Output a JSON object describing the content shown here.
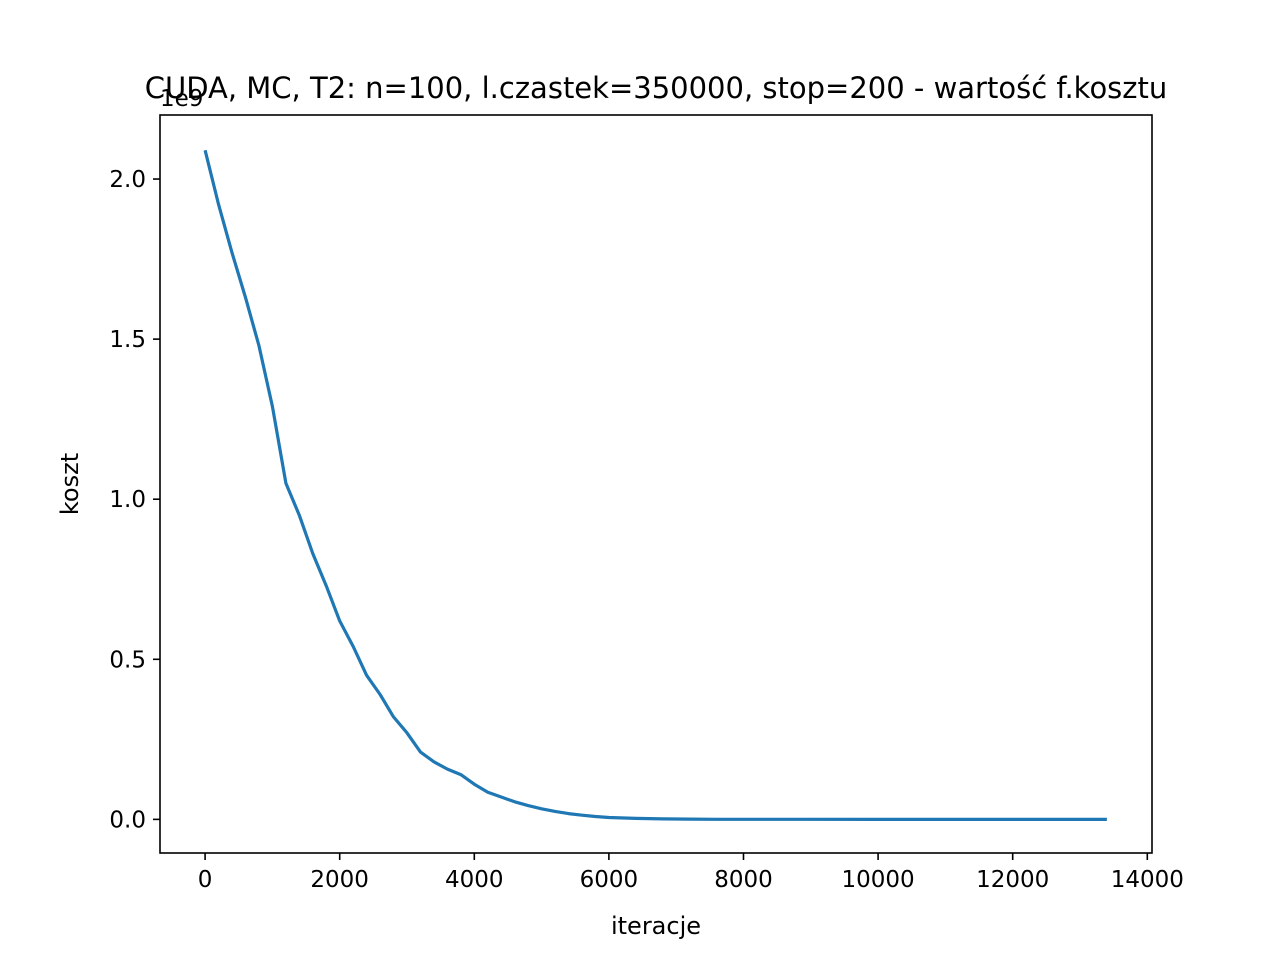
{
  "chart_data": {
    "type": "line",
    "title": "CUDA, MC, T2: n=100, l.czastek=350000, stop=200 - wartość f.kosztu",
    "xlabel": "iteracje",
    "ylabel": "koszt",
    "y_offset_label": "1e9",
    "xlim": [
      -670,
      14070
    ],
    "ylim": [
      -0.105,
      2.2
    ],
    "x_ticks": [
      0,
      2000,
      4000,
      6000,
      8000,
      10000,
      12000,
      14000
    ],
    "x_tick_labels": [
      "0",
      "2000",
      "4000",
      "6000",
      "8000",
      "10000",
      "12000",
      "14000"
    ],
    "y_ticks": [
      0.0,
      0.5,
      1.0,
      1.5,
      2.0
    ],
    "y_tick_labels": [
      "0.0",
      "0.5",
      "1.0",
      "1.5",
      "2.0"
    ],
    "grid": false,
    "series": [
      {
        "color": "#1f77b4",
        "x": [
          0,
          200,
          400,
          600,
          800,
          1000,
          1200,
          1400,
          1600,
          1800,
          2000,
          2200,
          2400,
          2600,
          2800,
          3000,
          3200,
          3400,
          3600,
          3800,
          4000,
          4200,
          4400,
          4600,
          4800,
          5000,
          5200,
          5400,
          5600,
          5800,
          6000,
          6400,
          6800,
          7200,
          7600,
          8000,
          9000,
          10000,
          11000,
          12000,
          13000,
          13400
        ],
        "y": [
          2.09,
          1.92,
          1.77,
          1.63,
          1.48,
          1.29,
          1.05,
          0.95,
          0.83,
          0.73,
          0.62,
          0.54,
          0.45,
          0.39,
          0.32,
          0.27,
          0.21,
          0.18,
          0.157,
          0.14,
          0.11,
          0.085,
          0.07,
          0.055,
          0.043,
          0.033,
          0.025,
          0.018,
          0.013,
          0.009,
          0.006,
          0.003,
          0.0015,
          0.0008,
          0.0004,
          0.0002,
          0.0001,
          0.0,
          0.0,
          0.0,
          0.0,
          0.0
        ]
      }
    ]
  }
}
